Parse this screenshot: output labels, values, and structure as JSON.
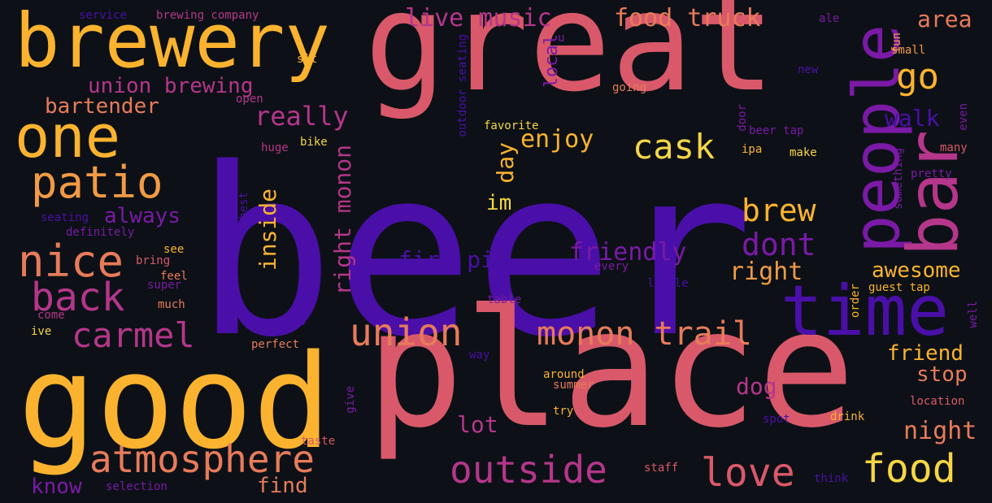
{
  "colors": {
    "background": "#0d1117",
    "indigo": "#4a0fa8",
    "purple": "#7a1aa6",
    "magenta": "#b5368a",
    "rose": "#d9596a",
    "coral": "#e87b5a",
    "orange": "#f29a45",
    "amber": "#fbb32f",
    "yellow": "#f6d645"
  },
  "words": [
    {
      "text": "beer",
      "tone": "indigo"
    },
    {
      "text": "great",
      "tone": "rose"
    },
    {
      "text": "place",
      "tone": "rose"
    },
    {
      "text": "good",
      "tone": "amber"
    },
    {
      "text": "brewery",
      "tone": "amber"
    },
    {
      "text": "one",
      "tone": "amber"
    },
    {
      "text": "people",
      "tone": "purple"
    },
    {
      "text": "bar",
      "tone": "magenta"
    },
    {
      "text": "time",
      "tone": "indigo"
    },
    {
      "text": "patio",
      "tone": "orange"
    },
    {
      "text": "nice",
      "tone": "coral"
    },
    {
      "text": "back",
      "tone": "magenta"
    },
    {
      "text": "carmel",
      "tone": "magenta"
    },
    {
      "text": "atmosphere",
      "tone": "coral"
    },
    {
      "text": "outside",
      "tone": "magenta"
    },
    {
      "text": "love",
      "tone": "rose"
    },
    {
      "text": "food",
      "tone": "yellow"
    },
    {
      "text": "union",
      "tone": "coral"
    },
    {
      "text": "monon trail",
      "tone": "coral"
    },
    {
      "text": "cask",
      "tone": "yellow"
    },
    {
      "text": "go",
      "tone": "amber"
    },
    {
      "text": "brew",
      "tone": "amber"
    },
    {
      "text": "dont",
      "tone": "purple"
    },
    {
      "text": "live music",
      "tone": "magenta"
    },
    {
      "text": "food truck",
      "tone": "coral"
    },
    {
      "text": "area",
      "tone": "coral"
    },
    {
      "text": "union brewing",
      "tone": "magenta"
    },
    {
      "text": "bartender",
      "tone": "coral"
    },
    {
      "text": "really",
      "tone": "magenta"
    },
    {
      "text": "walk",
      "tone": "indigo"
    },
    {
      "text": "enjoy",
      "tone": "amber"
    },
    {
      "text": "friendly",
      "tone": "purple"
    },
    {
      "text": "fire pit",
      "tone": "indigo"
    },
    {
      "text": "right",
      "tone": "orange"
    },
    {
      "text": "awesome",
      "tone": "amber"
    },
    {
      "text": "friend",
      "tone": "amber"
    },
    {
      "text": "stop",
      "tone": "coral"
    },
    {
      "text": "night",
      "tone": "coral"
    },
    {
      "text": "dog",
      "tone": "magenta"
    },
    {
      "text": "lot",
      "tone": "magenta"
    },
    {
      "text": "always",
      "tone": "purple"
    },
    {
      "text": "know",
      "tone": "purple"
    },
    {
      "text": "find",
      "tone": "coral"
    },
    {
      "text": "right monon",
      "tone": "magenta"
    },
    {
      "text": "inside",
      "tone": "amber"
    },
    {
      "text": "day",
      "tone": "amber"
    },
    {
      "text": "im",
      "tone": "yellow"
    },
    {
      "text": "local",
      "tone": "purple"
    },
    {
      "text": "service",
      "tone": "indigo"
    },
    {
      "text": "brewing company",
      "tone": "magenta"
    },
    {
      "text": "ale",
      "tone": "purple"
    },
    {
      "text": "fun",
      "tone": "orange"
    },
    {
      "text": "small",
      "tone": "orange"
    },
    {
      "text": "sit",
      "tone": "amber"
    },
    {
      "text": "new",
      "tone": "indigo"
    },
    {
      "text": "going",
      "tone": "coral"
    },
    {
      "text": "open",
      "tone": "magenta"
    },
    {
      "text": "door",
      "tone": "purple"
    },
    {
      "text": "favorite",
      "tone": "yellow"
    },
    {
      "text": "beer tap",
      "tone": "purple"
    },
    {
      "text": "even",
      "tone": "purple"
    },
    {
      "text": "many",
      "tone": "rose"
    },
    {
      "text": "huge",
      "tone": "magenta"
    },
    {
      "text": "bike",
      "tone": "yellow"
    },
    {
      "text": "ipa",
      "tone": "amber"
    },
    {
      "text": "make",
      "tone": "yellow"
    },
    {
      "text": "pretty",
      "tone": "purple"
    },
    {
      "text": "seating",
      "tone": "indigo"
    },
    {
      "text": "definitely",
      "tone": "purple"
    },
    {
      "text": "see",
      "tone": "amber"
    },
    {
      "text": "bring",
      "tone": "rose"
    },
    {
      "text": "feel",
      "tone": "coral"
    },
    {
      "text": "super",
      "tone": "purple"
    },
    {
      "text": "much",
      "tone": "coral"
    },
    {
      "text": "come",
      "tone": "magenta"
    },
    {
      "text": "ive",
      "tone": "yellow"
    },
    {
      "text": "every",
      "tone": "purple"
    },
    {
      "text": "little",
      "tone": "indigo"
    },
    {
      "text": "order",
      "tone": "amber"
    },
    {
      "text": "guest tap",
      "tone": "amber"
    },
    {
      "text": "well",
      "tone": "purple"
    },
    {
      "text": "table",
      "tone": "purple"
    },
    {
      "text": "big",
      "tone": "indigo"
    },
    {
      "text": "perfect",
      "tone": "coral"
    },
    {
      "text": "way",
      "tone": "indigo"
    },
    {
      "text": "around",
      "tone": "amber"
    },
    {
      "text": "summer",
      "tone": "coral"
    },
    {
      "text": "location",
      "tone": "rose"
    },
    {
      "text": "try",
      "tone": "amber"
    },
    {
      "text": "spot",
      "tone": "indigo"
    },
    {
      "text": "drink",
      "tone": "amber"
    },
    {
      "text": "give",
      "tone": "purple"
    },
    {
      "text": "taste",
      "tone": "rose"
    },
    {
      "text": "staff",
      "tone": "rose"
    },
    {
      "text": "think",
      "tone": "indigo"
    },
    {
      "text": "selection",
      "tone": "purple"
    },
    {
      "text": "best",
      "tone": "indigo"
    },
    {
      "text": "something",
      "tone": "purple"
    },
    {
      "text": "outdoor seating",
      "tone": "indigo"
    },
    {
      "text": "u",
      "tone": "purple"
    }
  ]
}
